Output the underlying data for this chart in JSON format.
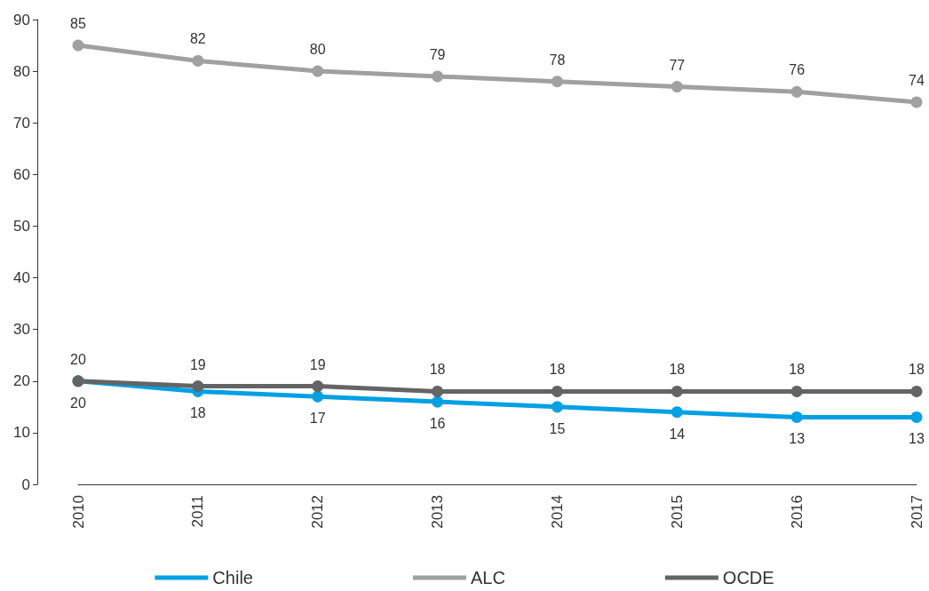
{
  "chart_data": {
    "type": "line",
    "categories": [
      "2010",
      "2011",
      "2012",
      "2013",
      "2014",
      "2015",
      "2016",
      "2017"
    ],
    "series": [
      {
        "name": "Chile",
        "color": "#00a0e3",
        "values": [
          20,
          18,
          17,
          16,
          15,
          14,
          13,
          13
        ]
      },
      {
        "name": "ALC",
        "color": "#a0a0a0",
        "values": [
          85,
          82,
          80,
          79,
          78,
          77,
          76,
          74
        ]
      },
      {
        "name": "OCDE",
        "color": "#646464",
        "values": [
          20,
          19,
          19,
          18,
          18,
          18,
          18,
          18
        ]
      }
    ],
    "data_labels": true,
    "ylim": [
      0,
      90
    ],
    "yticks": [
      0,
      10,
      20,
      30,
      40,
      50,
      60,
      70,
      80,
      90
    ],
    "grid": false,
    "legend": "bottom",
    "marker": "circle",
    "line_style": "solid"
  }
}
